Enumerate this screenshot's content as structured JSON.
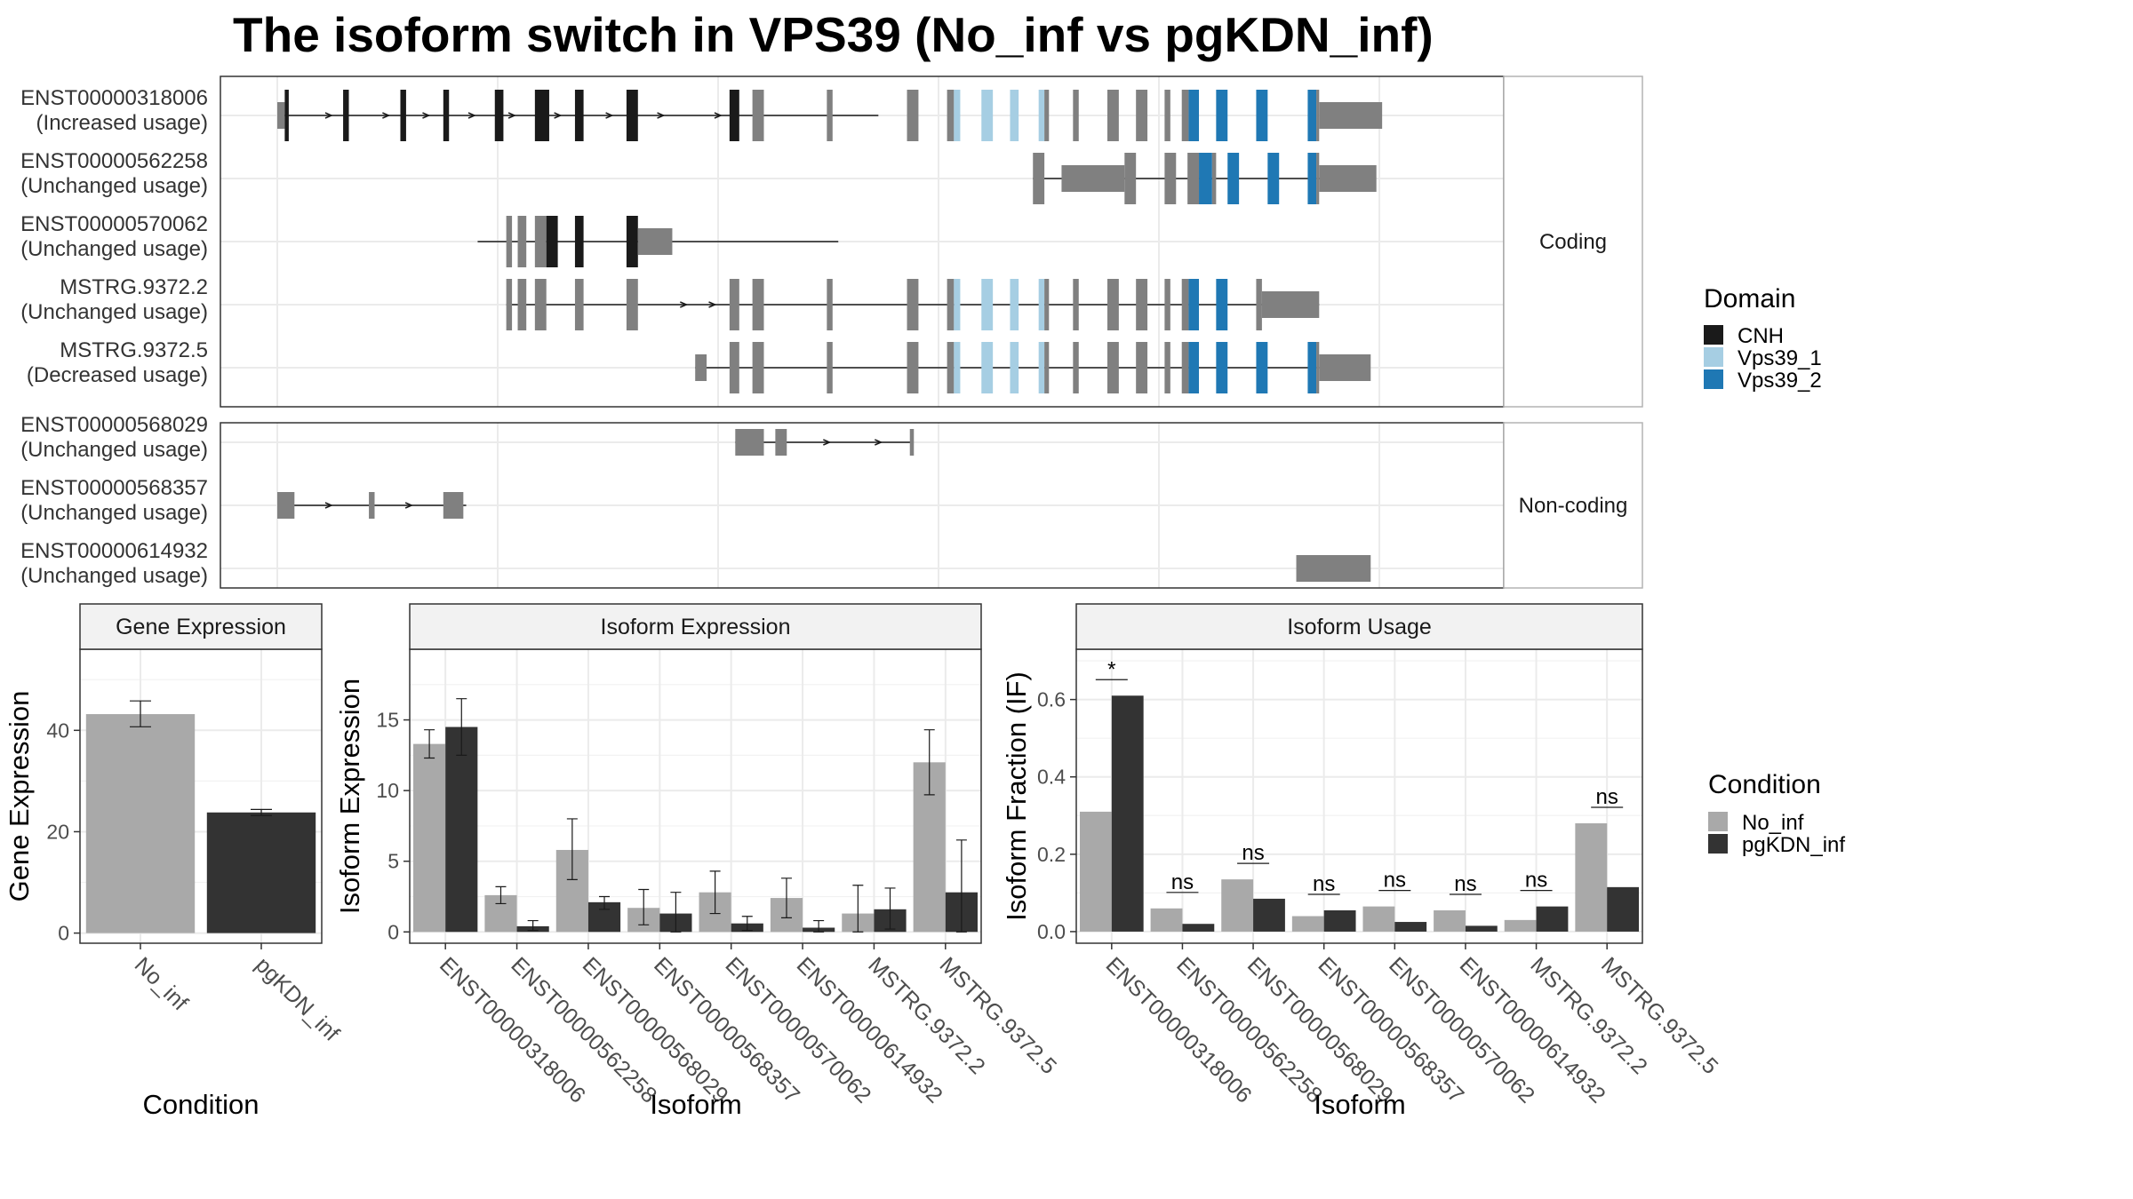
{
  "title": "The isoform switch in VPS39 (No_inf vs pgKDN_inf)",
  "colors": {
    "cnh": "#1a1a1a",
    "vps39_1": "#a6cee3",
    "vps39_2": "#1f78b4",
    "utr": "#808080",
    "no_inf": "#a9a9a9",
    "pgkdn_inf": "#333333",
    "strip": "#f2f2f2",
    "grid": "#ebebeb",
    "border": "#333333"
  },
  "structure": {
    "facets": [
      {
        "label": "Coding",
        "group": "coding"
      },
      {
        "label": "Non-coding",
        "group": "noncoding"
      }
    ],
    "transcripts": [
      {
        "id": "ENST00000318006",
        "status": "(Increased usage)",
        "group": "coding",
        "intron": [
          0.1,
          10.5
        ],
        "exons": [
          {
            "s": 0.0,
            "e": 0.13,
            "d": "utr",
            "h": "utr"
          },
          {
            "s": 0.13,
            "e": 0.2,
            "d": "cnh"
          },
          {
            "s": 1.15,
            "e": 1.25,
            "d": "cnh"
          },
          {
            "s": 2.15,
            "e": 2.25,
            "d": "cnh"
          },
          {
            "s": 2.9,
            "e": 3.0,
            "d": "cnh"
          },
          {
            "s": 3.8,
            "e": 3.95,
            "d": "cnh"
          },
          {
            "s": 4.5,
            "e": 4.75,
            "d": "cnh"
          },
          {
            "s": 5.2,
            "e": 5.35,
            "d": "cnh"
          },
          {
            "s": 6.1,
            "e": 6.3,
            "d": "cnh"
          },
          {
            "s": 7.9,
            "e": 8.07,
            "d": "cnh"
          },
          {
            "s": 8.3,
            "e": 8.5,
            "d": "grey"
          },
          {
            "s": 9.6,
            "e": 9.7,
            "d": "grey"
          },
          {
            "s": 11.0,
            "e": 11.2,
            "d": "grey"
          },
          {
            "s": 11.7,
            "e": 11.82,
            "d": "grey"
          },
          {
            "s": 11.82,
            "e": 11.93,
            "d": "vps39_1"
          },
          {
            "s": 12.3,
            "e": 12.5,
            "d": "vps39_1"
          },
          {
            "s": 12.8,
            "e": 12.95,
            "d": "vps39_1"
          },
          {
            "s": 13.3,
            "e": 13.4,
            "d": "vps39_1"
          },
          {
            "s": 13.4,
            "e": 13.48,
            "d": "grey"
          },
          {
            "s": 13.9,
            "e": 14.0,
            "d": "grey"
          },
          {
            "s": 14.5,
            "e": 14.7,
            "d": "grey"
          },
          {
            "s": 15.0,
            "e": 15.2,
            "d": "grey"
          },
          {
            "s": 15.5,
            "e": 15.6,
            "d": "grey"
          },
          {
            "s": 15.8,
            "e": 15.92,
            "d": "grey"
          },
          {
            "s": 15.92,
            "e": 16.1,
            "d": "vps39_2"
          },
          {
            "s": 16.4,
            "e": 16.6,
            "d": "vps39_2"
          },
          {
            "s": 17.1,
            "e": 17.3,
            "d": "vps39_2"
          },
          {
            "s": 18.0,
            "e": 18.15,
            "d": "vps39_2"
          },
          {
            "s": 18.15,
            "e": 18.2,
            "d": "grey"
          },
          {
            "s": 18.2,
            "e": 19.3,
            "d": "utr",
            "h": "utr"
          }
        ],
        "arrows": [
          0.9,
          1.9,
          2.6,
          3.4,
          4.1,
          4.9,
          5.8,
          6.7,
          7.7
        ]
      },
      {
        "id": "ENST00000562258",
        "status": "(Unchanged usage)",
        "group": "coding",
        "intron": [
          13.2,
          18.8
        ],
        "exons": [
          {
            "s": 13.2,
            "e": 13.4,
            "d": "grey"
          },
          {
            "s": 13.7,
            "e": 14.8,
            "d": "utr",
            "h": "utr"
          },
          {
            "s": 14.8,
            "e": 15.0,
            "d": "grey"
          },
          {
            "s": 15.5,
            "e": 15.7,
            "d": "grey"
          },
          {
            "s": 15.9,
            "e": 16.1,
            "d": "grey"
          },
          {
            "s": 16.1,
            "e": 16.33,
            "d": "vps39_2"
          },
          {
            "s": 16.33,
            "e": 16.4,
            "d": "grey"
          },
          {
            "s": 16.6,
            "e": 16.8,
            "d": "vps39_2"
          },
          {
            "s": 17.3,
            "e": 17.5,
            "d": "vps39_2"
          },
          {
            "s": 18.0,
            "e": 18.15,
            "d": "vps39_2"
          },
          {
            "s": 18.15,
            "e": 18.2,
            "d": "grey"
          },
          {
            "s": 18.2,
            "e": 19.2,
            "d": "utr",
            "h": "utr"
          }
        ],
        "arrows": []
      },
      {
        "id": "ENST00000570062",
        "status": "(Unchanged usage)",
        "group": "coding",
        "intron": [
          3.5,
          9.8
        ],
        "exons": [
          {
            "s": 4.0,
            "e": 4.1,
            "d": "grey"
          },
          {
            "s": 4.2,
            "e": 4.35,
            "d": "grey"
          },
          {
            "s": 4.5,
            "e": 4.7,
            "d": "grey"
          },
          {
            "s": 4.7,
            "e": 4.9,
            "d": "cnh"
          },
          {
            "s": 5.2,
            "e": 5.35,
            "d": "cnh"
          },
          {
            "s": 6.1,
            "e": 6.3,
            "d": "cnh"
          },
          {
            "s": 6.3,
            "e": 6.9,
            "d": "utr",
            "h": "utr"
          }
        ],
        "arrows": []
      },
      {
        "id": "MSTRG.9372.2",
        "status": "(Unchanged usage)",
        "group": "coding",
        "intron": [
          4.0,
          18.2
        ],
        "exons": [
          {
            "s": 4.0,
            "e": 4.1,
            "d": "grey"
          },
          {
            "s": 4.2,
            "e": 4.35,
            "d": "grey"
          },
          {
            "s": 4.5,
            "e": 4.7,
            "d": "grey"
          },
          {
            "s": 5.2,
            "e": 5.35,
            "d": "grey"
          },
          {
            "s": 6.1,
            "e": 6.3,
            "d": "grey"
          },
          {
            "s": 7.9,
            "e": 8.07,
            "d": "grey"
          },
          {
            "s": 8.3,
            "e": 8.5,
            "d": "grey"
          },
          {
            "s": 9.6,
            "e": 9.7,
            "d": "grey"
          },
          {
            "s": 11.0,
            "e": 11.2,
            "d": "grey"
          },
          {
            "s": 11.7,
            "e": 11.82,
            "d": "grey"
          },
          {
            "s": 11.82,
            "e": 11.93,
            "d": "vps39_1"
          },
          {
            "s": 12.3,
            "e": 12.5,
            "d": "vps39_1"
          },
          {
            "s": 12.8,
            "e": 12.95,
            "d": "vps39_1"
          },
          {
            "s": 13.3,
            "e": 13.4,
            "d": "vps39_1"
          },
          {
            "s": 13.4,
            "e": 13.48,
            "d": "grey"
          },
          {
            "s": 13.9,
            "e": 14.0,
            "d": "grey"
          },
          {
            "s": 14.5,
            "e": 14.7,
            "d": "grey"
          },
          {
            "s": 15.0,
            "e": 15.2,
            "d": "grey"
          },
          {
            "s": 15.5,
            "e": 15.6,
            "d": "grey"
          },
          {
            "s": 15.8,
            "e": 15.92,
            "d": "grey"
          },
          {
            "s": 15.92,
            "e": 16.1,
            "d": "vps39_2"
          },
          {
            "s": 16.4,
            "e": 16.6,
            "d": "vps39_2"
          },
          {
            "s": 17.1,
            "e": 17.2,
            "d": "grey"
          },
          {
            "s": 17.2,
            "e": 18.2,
            "d": "utr",
            "h": "utr"
          }
        ],
        "arrows": [
          7.1,
          7.6
        ]
      },
      {
        "id": "MSTRG.9372.5",
        "status": "(Decreased usage)",
        "group": "coding",
        "intron": [
          7.3,
          18.2
        ],
        "exons": [
          {
            "s": 7.3,
            "e": 7.5,
            "d": "utr",
            "h": "utr"
          },
          {
            "s": 7.9,
            "e": 8.07,
            "d": "grey"
          },
          {
            "s": 8.3,
            "e": 8.5,
            "d": "grey"
          },
          {
            "s": 9.6,
            "e": 9.7,
            "d": "grey"
          },
          {
            "s": 11.0,
            "e": 11.2,
            "d": "grey"
          },
          {
            "s": 11.7,
            "e": 11.82,
            "d": "grey"
          },
          {
            "s": 11.82,
            "e": 11.93,
            "d": "vps39_1"
          },
          {
            "s": 12.3,
            "e": 12.5,
            "d": "vps39_1"
          },
          {
            "s": 12.8,
            "e": 12.95,
            "d": "vps39_1"
          },
          {
            "s": 13.3,
            "e": 13.4,
            "d": "vps39_1"
          },
          {
            "s": 13.4,
            "e": 13.48,
            "d": "grey"
          },
          {
            "s": 13.9,
            "e": 14.0,
            "d": "grey"
          },
          {
            "s": 14.5,
            "e": 14.7,
            "d": "grey"
          },
          {
            "s": 15.0,
            "e": 15.2,
            "d": "grey"
          },
          {
            "s": 15.5,
            "e": 15.6,
            "d": "grey"
          },
          {
            "s": 15.8,
            "e": 15.92,
            "d": "grey"
          },
          {
            "s": 15.92,
            "e": 16.1,
            "d": "vps39_2"
          },
          {
            "s": 16.4,
            "e": 16.6,
            "d": "vps39_2"
          },
          {
            "s": 17.1,
            "e": 17.3,
            "d": "vps39_2"
          },
          {
            "s": 18.0,
            "e": 18.15,
            "d": "vps39_2"
          },
          {
            "s": 18.15,
            "e": 18.2,
            "d": "grey"
          },
          {
            "s": 18.2,
            "e": 19.1,
            "d": "utr",
            "h": "utr"
          }
        ],
        "arrows": []
      },
      {
        "id": "ENST00000568029",
        "status": "(Unchanged usage)",
        "group": "noncoding",
        "intron": [
          8.0,
          11.1
        ],
        "exons": [
          {
            "s": 8.0,
            "e": 8.5,
            "d": "utr",
            "h": "utr"
          },
          {
            "s": 8.7,
            "e": 8.9,
            "d": "utr",
            "h": "utr"
          },
          {
            "s": 11.05,
            "e": 11.12,
            "d": "utr",
            "h": "utr"
          }
        ],
        "arrows": [
          9.6,
          10.5
        ]
      },
      {
        "id": "ENST00000568357",
        "status": "(Unchanged usage)",
        "group": "noncoding",
        "intron": [
          0.0,
          3.3
        ],
        "exons": [
          {
            "s": 0.0,
            "e": 0.3,
            "d": "utr",
            "h": "utr"
          },
          {
            "s": 1.6,
            "e": 1.7,
            "d": "utr",
            "h": "utr"
          },
          {
            "s": 2.9,
            "e": 3.25,
            "d": "utr",
            "h": "utr"
          }
        ],
        "arrows": [
          0.9,
          2.3
        ]
      },
      {
        "id": "ENST00000614932",
        "status": "(Unchanged usage)",
        "group": "noncoding",
        "intron": null,
        "exons": [
          {
            "s": 17.8,
            "e": 19.1,
            "d": "utr",
            "h": "utr"
          }
        ],
        "arrows": []
      }
    ],
    "domain_legend": {
      "title": "Domain",
      "items": [
        {
          "label": "CNH",
          "key": "cnh"
        },
        {
          "label": "Vps39_1",
          "key": "vps39_1"
        },
        {
          "label": "Vps39_2",
          "key": "vps39_2"
        }
      ]
    }
  },
  "condition_legend": {
    "title": "Condition",
    "items": [
      {
        "label": "No_inf",
        "key": "no_inf"
      },
      {
        "label": "pgKDN_inf",
        "key": "pgkdn_inf"
      }
    ]
  },
  "chart_data": [
    {
      "type": "bar",
      "strip": "Gene Expression",
      "categories": [
        "No_inf",
        "pgKDN_inf"
      ],
      "values": [
        43.2,
        23.8
      ],
      "errors": [
        [
          40.7,
          45.8
        ],
        [
          23.2,
          24.4
        ]
      ],
      "xlabel": "Condition",
      "ylabel": "Gene Expression",
      "ylim": [
        -2,
        56
      ],
      "yticks": [
        0,
        20,
        40
      ]
    },
    {
      "type": "bar",
      "strip": "Isoform Expression",
      "categories": [
        "ENST00000318006",
        "ENST00000562258",
        "ENST00000568029",
        "ENST00000568357",
        "ENST00000570062",
        "ENST00000614932",
        "MSTRG.9372.2",
        "MSTRG.9372.5"
      ],
      "series": [
        {
          "name": "No_inf",
          "values": [
            13.3,
            2.6,
            5.8,
            1.7,
            2.8,
            2.4,
            1.3,
            12.0
          ],
          "errors": [
            [
              12.3,
              14.3
            ],
            [
              2.0,
              3.2
            ],
            [
              3.7,
              8.0
            ],
            [
              0.5,
              3.0
            ],
            [
              1.3,
              4.3
            ],
            [
              1.0,
              3.8
            ],
            [
              0.0,
              3.3
            ],
            [
              9.7,
              14.3
            ]
          ]
        },
        {
          "name": "pgKDN_inf",
          "values": [
            14.5,
            0.4,
            2.1,
            1.3,
            0.6,
            0.3,
            1.6,
            2.8
          ],
          "errors": [
            [
              12.5,
              16.5
            ],
            [
              0.1,
              0.8
            ],
            [
              1.6,
              2.5
            ],
            [
              0.0,
              2.8
            ],
            [
              0.1,
              1.1
            ],
            [
              0.0,
              0.8
            ],
            [
              0.2,
              3.1
            ],
            [
              0.0,
              6.5
            ]
          ]
        }
      ],
      "xlabel": "Isoform",
      "ylabel": "Isoform Expression",
      "ylim": [
        -0.8,
        20
      ],
      "yticks": [
        0,
        5,
        10,
        15
      ]
    },
    {
      "type": "bar",
      "strip": "Isoform Usage",
      "categories": [
        "ENST00000318006",
        "ENST00000562258",
        "ENST00000568029",
        "ENST00000568357",
        "ENST00000570062",
        "ENST00000614932",
        "MSTRG.9372.2",
        "MSTRG.9372.5"
      ],
      "series": [
        {
          "name": "No_inf",
          "values": [
            0.31,
            0.06,
            0.135,
            0.04,
            0.065,
            0.055,
            0.03,
            0.28
          ]
        },
        {
          "name": "pgKDN_inf",
          "values": [
            0.61,
            0.02,
            0.085,
            0.055,
            0.025,
            0.015,
            0.065,
            0.115
          ]
        }
      ],
      "significance": [
        "*",
        "ns",
        "ns",
        "ns",
        "ns",
        "ns",
        "ns",
        "ns"
      ],
      "xlabel": "Isoform",
      "ylabel": "Isoform Fraction (IF)",
      "ylim": [
        -0.03,
        0.73
      ],
      "yticks": [
        0.0,
        0.2,
        0.4,
        0.6
      ],
      "ytick_labels": [
        "0.0",
        "0.2",
        "0.4",
        "0.6"
      ]
    }
  ]
}
